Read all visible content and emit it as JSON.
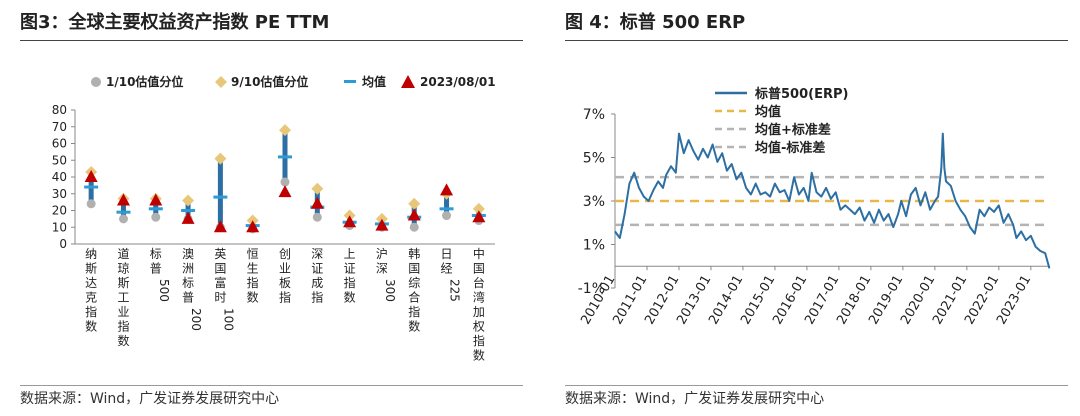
{
  "left_panel": {
    "title": "图3：全球主要权益资产指数 PE TTM",
    "source": "数据来源：Wind，广发证券发展研究中心"
  },
  "right_panel": {
    "title": "图 4：标普 500 ERP",
    "source": "数据来源：Wind，广发证券发展研究中心"
  },
  "colors": {
    "p10": "#b0b0b0",
    "p90": "#e8c77a",
    "mean": "#2e9bd6",
    "current": "#c00000",
    "range_bar": "#2d6fa5",
    "erp_line": "#2e6fa3",
    "mean_line": "#e8b74a",
    "std_line": "#b4b4b4"
  },
  "chart_data": [
    {
      "type": "range-dot",
      "title": "全球主要权益资产指数 PE TTM",
      "ylim": [
        0,
        80
      ],
      "yticks": [
        "0",
        "10",
        "20",
        "30",
        "40",
        "50",
        "60",
        "70",
        "80"
      ],
      "legend": [
        "1/10估值分位",
        "9/10估值分位",
        "均值",
        "2023/08/01"
      ],
      "categories": [
        "纳斯达克指数",
        "道琼斯工业指数",
        "标普500",
        "澳洲标普200",
        "英国富时100",
        "恒生指数",
        "创业板指",
        "深证成指",
        "上证指数",
        "沪深300",
        "韩国综合指数",
        "日经225",
        "中国台湾加权指数"
      ],
      "p10": [
        24,
        15,
        16,
        15,
        10,
        9,
        37,
        16,
        11,
        10,
        10,
        17,
        14
      ],
      "p90": [
        43,
        27,
        27,
        26,
        51,
        14,
        68,
        33,
        17,
        15,
        24,
        30,
        21
      ],
      "mean": [
        34,
        19,
        21,
        20,
        28,
        11,
        52,
        22,
        13,
        12,
        16,
        21,
        17
      ],
      "current": [
        40,
        26,
        26,
        15,
        10,
        10,
        31,
        24,
        13,
        11,
        17,
        32,
        16
      ]
    },
    {
      "type": "line",
      "title": "标普 500 ERP",
      "ylim": [
        -1,
        7
      ],
      "yticks": [
        "7%",
        "5%",
        "3%",
        "1%",
        "-1%"
      ],
      "xticks": [
        "2010-01",
        "2011-01",
        "2012-01",
        "2013-01",
        "2014-01",
        "2015-01",
        "2016-01",
        "2017-01",
        "2018-01",
        "2019-01",
        "2020-01",
        "2021-01",
        "2022-01",
        "2023-01"
      ],
      "legend": [
        "标普500(ERP)",
        "均值",
        "均值+标准差",
        "均值-标准差"
      ],
      "mean": 3.0,
      "mean_plus_std": 4.1,
      "mean_minus_std": 1.9,
      "x": [
        2010.0,
        2010.15,
        2010.3,
        2010.45,
        2010.6,
        2010.75,
        2010.9,
        2011.05,
        2011.2,
        2011.35,
        2011.5,
        2011.6,
        2011.75,
        2011.9,
        2012.0,
        2012.15,
        2012.3,
        2012.45,
        2012.6,
        2012.75,
        2012.9,
        2013.05,
        2013.2,
        2013.35,
        2013.5,
        2013.65,
        2013.8,
        2013.95,
        2014.1,
        2014.25,
        2014.4,
        2014.55,
        2014.7,
        2014.85,
        2015.0,
        2015.15,
        2015.3,
        2015.45,
        2015.6,
        2015.75,
        2015.9,
        2016.05,
        2016.15,
        2016.3,
        2016.45,
        2016.6,
        2016.75,
        2016.9,
        2017.05,
        2017.2,
        2017.35,
        2017.5,
        2017.65,
        2017.8,
        2017.95,
        2018.1,
        2018.25,
        2018.4,
        2018.55,
        2018.7,
        2018.85,
        2018.95,
        2019.1,
        2019.25,
        2019.4,
        2019.55,
        2019.7,
        2019.85,
        2020.0,
        2020.1,
        2020.2,
        2020.25,
        2020.3,
        2020.35,
        2020.5,
        2020.65,
        2020.8,
        2020.95,
        2021.1,
        2021.25,
        2021.4,
        2021.55,
        2021.7,
        2021.85,
        2022.0,
        2022.15,
        2022.3,
        2022.45,
        2022.55,
        2022.7,
        2022.85,
        2023.0,
        2023.15,
        2023.3,
        2023.45,
        2023.58
      ],
      "y": [
        1.6,
        1.3,
        2.4,
        3.8,
        4.3,
        3.6,
        3.2,
        3.0,
        3.5,
        3.9,
        3.6,
        4.2,
        4.6,
        4.3,
        6.1,
        5.2,
        5.8,
        5.3,
        4.9,
        5.4,
        5.0,
        5.6,
        4.8,
        5.2,
        4.4,
        4.7,
        4.0,
        4.3,
        3.6,
        3.3,
        3.8,
        3.3,
        3.4,
        3.2,
        3.8,
        3.4,
        3.5,
        3.0,
        4.1,
        3.3,
        3.6,
        3.0,
        4.3,
        3.4,
        3.2,
        3.6,
        3.1,
        3.4,
        2.6,
        2.8,
        2.6,
        2.4,
        2.7,
        2.1,
        2.5,
        2.0,
        2.6,
        2.1,
        2.4,
        1.8,
        2.4,
        3.0,
        2.3,
        3.3,
        3.6,
        2.8,
        3.4,
        2.6,
        3.0,
        3.2,
        4.5,
        6.1,
        4.5,
        3.9,
        3.7,
        3.0,
        2.6,
        2.3,
        1.8,
        1.5,
        2.6,
        2.3,
        2.7,
        2.5,
        2.8,
        2.0,
        2.4,
        1.9,
        1.3,
        1.6,
        1.2,
        1.4,
        0.9,
        0.7,
        0.6,
        -0.1
      ]
    }
  ]
}
